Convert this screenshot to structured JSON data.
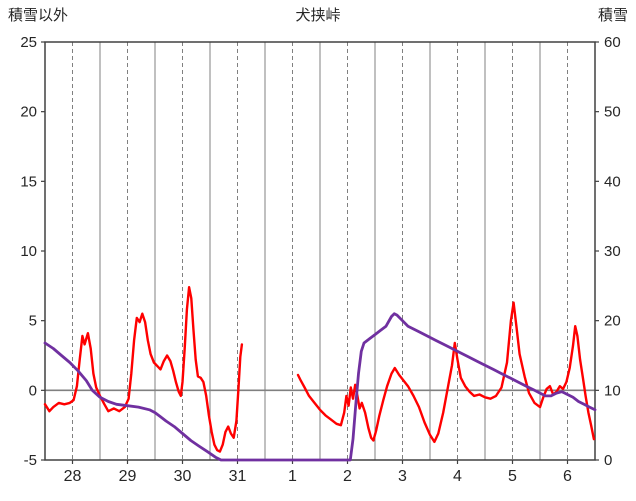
{
  "header": {
    "left_axis_title": "積雪以外",
    "title": "犬挟峠",
    "right_axis_title": "積雪"
  },
  "chart_data": {
    "type": "line",
    "title": "犬挟峠",
    "left_axis": {
      "label": "積雪以外",
      "min": -5,
      "max": 25,
      "ticks": [
        25,
        20,
        15,
        10,
        5,
        0,
        -5
      ]
    },
    "right_axis": {
      "label": "積雪",
      "min": 0,
      "max": 60,
      "ticks": [
        60,
        50,
        40,
        30,
        20,
        10,
        0
      ]
    },
    "x_axis": {
      "labels": [
        "28",
        "29",
        "30",
        "31",
        "1",
        "2",
        "3",
        "4",
        "5",
        "6"
      ]
    },
    "grid": {
      "vertical_solid_at_day_boundaries": true,
      "vertical_dashed_at_half_days": true,
      "horizontal_zero_line": true
    },
    "colors": {
      "grid": "#808080",
      "zero_line": "#808080",
      "border": "#404040",
      "tick_text": "#262626"
    },
    "series": [
      {
        "name": "red-series",
        "axis": "left",
        "color": "#ff0000",
        "width": 2.4,
        "segments": [
          [
            [
              0,
              -1.0
            ],
            [
              0.08,
              -1.5
            ],
            [
              0.15,
              -1.2
            ],
            [
              0.25,
              -0.9
            ],
            [
              0.35,
              -1.0
            ],
            [
              0.45,
              -0.9
            ],
            [
              0.52,
              -0.7
            ],
            [
              0.58,
              0.3
            ],
            [
              0.63,
              2.2
            ],
            [
              0.68,
              3.9
            ],
            [
              0.72,
              3.3
            ],
            [
              0.78,
              4.1
            ],
            [
              0.83,
              3.0
            ],
            [
              0.88,
              1.2
            ],
            [
              0.93,
              0.2
            ],
            [
              1.0,
              -0.4
            ],
            [
              1.08,
              -1.0
            ],
            [
              1.15,
              -1.5
            ],
            [
              1.25,
              -1.3
            ],
            [
              1.35,
              -1.5
            ],
            [
              1.45,
              -1.2
            ],
            [
              1.52,
              -0.6
            ],
            [
              1.57,
              1.2
            ],
            [
              1.62,
              3.6
            ],
            [
              1.67,
              5.2
            ],
            [
              1.72,
              4.9
            ],
            [
              1.77,
              5.5
            ],
            [
              1.82,
              4.9
            ],
            [
              1.87,
              3.6
            ],
            [
              1.92,
              2.6
            ],
            [
              1.98,
              2.0
            ],
            [
              2.05,
              1.7
            ],
            [
              2.1,
              1.5
            ],
            [
              2.16,
              2.1
            ],
            [
              2.22,
              2.5
            ],
            [
              2.28,
              2.1
            ],
            [
              2.33,
              1.4
            ],
            [
              2.38,
              0.6
            ],
            [
              2.43,
              -0.1
            ],
            [
              2.47,
              -0.4
            ],
            [
              2.5,
              0.6
            ],
            [
              2.54,
              3.0
            ],
            [
              2.58,
              5.8
            ],
            [
              2.62,
              7.4
            ],
            [
              2.66,
              6.6
            ],
            [
              2.7,
              4.3
            ],
            [
              2.74,
              2.2
            ],
            [
              2.78,
              1.0
            ],
            [
              2.83,
              0.9
            ],
            [
              2.88,
              0.6
            ],
            [
              2.93,
              -0.4
            ],
            [
              2.98,
              -1.8
            ],
            [
              3.03,
              -3.0
            ],
            [
              3.08,
              -3.9
            ],
            [
              3.13,
              -4.3
            ],
            [
              3.18,
              -4.4
            ],
            [
              3.23,
              -3.9
            ],
            [
              3.28,
              -3.0
            ],
            [
              3.33,
              -2.6
            ],
            [
              3.38,
              -3.1
            ],
            [
              3.43,
              -3.4
            ],
            [
              3.48,
              -2.2
            ],
            [
              3.52,
              0.3
            ],
            [
              3.55,
              2.4
            ],
            [
              3.58,
              3.3
            ]
          ],
          [
            [
              4.6,
              1.1
            ],
            [
              4.65,
              0.7
            ],
            [
              4.72,
              0.2
            ],
            [
              4.8,
              -0.4
            ],
            [
              4.9,
              -0.9
            ],
            [
              5.0,
              -1.4
            ],
            [
              5.1,
              -1.8
            ],
            [
              5.2,
              -2.1
            ],
            [
              5.3,
              -2.4
            ],
            [
              5.38,
              -2.5
            ],
            [
              5.44,
              -1.6
            ],
            [
              5.48,
              -0.4
            ],
            [
              5.52,
              -1.1
            ],
            [
              5.56,
              0.2
            ],
            [
              5.6,
              -0.6
            ],
            [
              5.64,
              0.4
            ],
            [
              5.68,
              -0.4
            ],
            [
              5.72,
              -1.3
            ],
            [
              5.76,
              -0.9
            ],
            [
              5.82,
              -1.6
            ],
            [
              5.88,
              -2.7
            ],
            [
              5.93,
              -3.4
            ],
            [
              5.97,
              -3.6
            ],
            [
              6.02,
              -2.9
            ],
            [
              6.08,
              -1.8
            ],
            [
              6.15,
              -0.7
            ],
            [
              6.22,
              0.3
            ],
            [
              6.3,
              1.2
            ],
            [
              6.36,
              1.6
            ],
            [
              6.44,
              1.1
            ],
            [
              6.52,
              0.7
            ],
            [
              6.6,
              0.3
            ],
            [
              6.7,
              -0.4
            ],
            [
              6.8,
              -1.2
            ],
            [
              6.9,
              -2.3
            ],
            [
              7.0,
              -3.2
            ],
            [
              7.08,
              -3.7
            ],
            [
              7.15,
              -3.1
            ],
            [
              7.24,
              -1.6
            ],
            [
              7.33,
              0.3
            ],
            [
              7.4,
              1.8
            ],
            [
              7.45,
              3.4
            ],
            [
              7.5,
              2.2
            ],
            [
              7.56,
              0.9
            ],
            [
              7.64,
              0.3
            ],
            [
              7.72,
              -0.1
            ],
            [
              7.8,
              -0.4
            ],
            [
              7.9,
              -0.3
            ],
            [
              8.0,
              -0.5
            ],
            [
              8.1,
              -0.6
            ],
            [
              8.2,
              -0.4
            ],
            [
              8.3,
              0.2
            ],
            [
              8.4,
              2.0
            ],
            [
              8.47,
              5.0
            ],
            [
              8.52,
              6.3
            ],
            [
              8.57,
              4.6
            ],
            [
              8.63,
              2.6
            ],
            [
              8.72,
              1.0
            ],
            [
              8.8,
              -0.2
            ],
            [
              8.9,
              -0.9
            ],
            [
              9.0,
              -1.2
            ],
            [
              9.06,
              -0.5
            ],
            [
              9.12,
              0.1
            ],
            [
              9.18,
              0.3
            ],
            [
              9.24,
              -0.3
            ],
            [
              9.3,
              -0.1
            ],
            [
              9.36,
              0.3
            ],
            [
              9.42,
              0.1
            ],
            [
              9.48,
              0.6
            ],
            [
              9.54,
              1.6
            ],
            [
              9.6,
              3.2
            ],
            [
              9.64,
              4.6
            ],
            [
              9.68,
              3.9
            ],
            [
              9.73,
              2.2
            ],
            [
              9.78,
              0.9
            ],
            [
              9.83,
              -0.4
            ],
            [
              9.88,
              -1.6
            ],
            [
              9.93,
              -2.5
            ],
            [
              9.98,
              -3.5
            ]
          ]
        ]
      },
      {
        "name": "purple-series",
        "axis": "right",
        "color": "#7030a0",
        "width": 2.8,
        "segments": [
          [
            [
              0,
              16.8
            ],
            [
              0.15,
              16.0
            ],
            [
              0.3,
              15.0
            ],
            [
              0.45,
              14.0
            ],
            [
              0.6,
              12.8
            ],
            [
              0.75,
              11.4
            ],
            [
              0.86,
              10.0
            ],
            [
              1.0,
              9.0
            ],
            [
              1.15,
              8.4
            ],
            [
              1.3,
              8.0
            ],
            [
              1.5,
              7.8
            ],
            [
              1.7,
              7.6
            ],
            [
              1.9,
              7.2
            ],
            [
              2.0,
              6.8
            ],
            [
              2.1,
              6.2
            ],
            [
              2.2,
              5.6
            ],
            [
              2.35,
              4.8
            ],
            [
              2.5,
              3.8
            ],
            [
              2.65,
              2.8
            ],
            [
              2.8,
              2.0
            ],
            [
              2.95,
              1.2
            ],
            [
              3.1,
              0.4
            ],
            [
              3.2,
              0
            ],
            [
              3.5,
              0
            ],
            [
              4.0,
              0
            ],
            [
              4.5,
              0
            ],
            [
              5.0,
              0
            ],
            [
              5.5,
              0
            ],
            [
              5.55,
              0
            ],
            [
              5.6,
              3
            ],
            [
              5.65,
              8
            ],
            [
              5.7,
              12.4
            ],
            [
              5.75,
              15.6
            ],
            [
              5.8,
              16.8
            ],
            [
              5.9,
              17.4
            ],
            [
              6.0,
              18.0
            ],
            [
              6.1,
              18.6
            ],
            [
              6.2,
              19.2
            ],
            [
              6.3,
              20.6
            ],
            [
              6.35,
              21.0
            ],
            [
              6.4,
              20.8
            ],
            [
              6.5,
              20.0
            ],
            [
              6.6,
              19.2
            ],
            [
              6.7,
              18.8
            ],
            [
              6.8,
              18.4
            ],
            [
              6.95,
              17.8
            ],
            [
              7.1,
              17.2
            ],
            [
              7.25,
              16.6
            ],
            [
              7.4,
              16.0
            ],
            [
              7.55,
              15.4
            ],
            [
              7.7,
              14.8
            ],
            [
              7.85,
              14.2
            ],
            [
              8.0,
              13.6
            ],
            [
              8.15,
              13.0
            ],
            [
              8.3,
              12.4
            ],
            [
              8.45,
              11.8
            ],
            [
              8.6,
              11.2
            ],
            [
              8.75,
              10.6
            ],
            [
              8.9,
              10.0
            ],
            [
              9.0,
              9.6
            ],
            [
              9.1,
              9.2
            ],
            [
              9.2,
              9.2
            ],
            [
              9.3,
              9.6
            ],
            [
              9.4,
              9.8
            ],
            [
              9.5,
              9.4
            ],
            [
              9.6,
              9.0
            ],
            [
              9.7,
              8.4
            ],
            [
              9.8,
              8.0
            ],
            [
              9.9,
              7.6
            ],
            [
              10,
              7.2
            ]
          ]
        ]
      }
    ]
  }
}
